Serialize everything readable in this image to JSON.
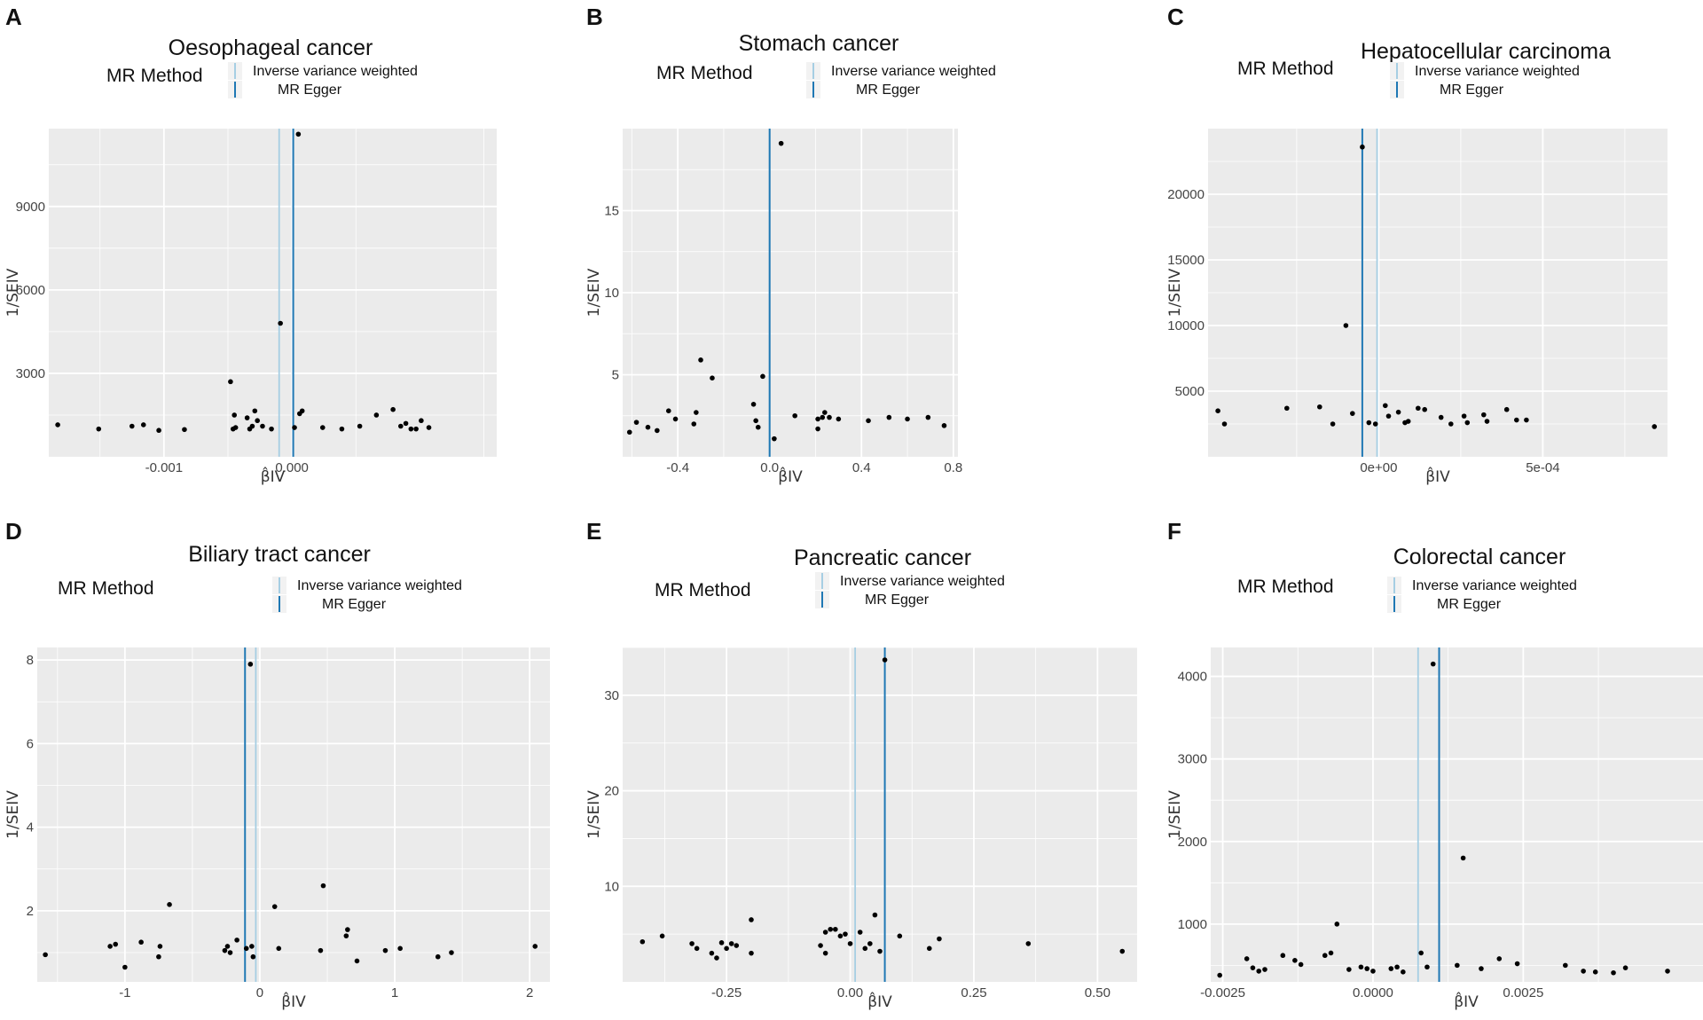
{
  "figure": {
    "colors": {
      "panel_bg": "#ebebeb",
      "grid": "#ffffff",
      "ivw": "#a6cee3",
      "egger": "#1f78b4",
      "point": "#000000"
    },
    "legend": {
      "title": "MR Method",
      "labels": [
        "Inverse variance weighted",
        "MR Egger"
      ]
    },
    "xlabel": "β̂IV",
    "ylabel": "1/SEIV"
  },
  "chart_data": [
    {
      "letter": "A",
      "type": "scatter",
      "title": "Oesophageal cancer",
      "xlim": [
        -0.0019,
        0.0016
      ],
      "ylim": [
        0,
        11800
      ],
      "xticks": [
        -0.001,
        0.0
      ],
      "xtick_labels": [
        "-0.001",
        "0.000"
      ],
      "yticks": [
        3000,
        6000,
        9000
      ],
      "ytick_labels": [
        "3000",
        "6000",
        "9000"
      ],
      "ivw": -0.0001,
      "egger": 1e-05,
      "points": [
        [
          -0.00183,
          1150
        ],
        [
          -0.00151,
          1000
        ],
        [
          -0.00125,
          1100
        ],
        [
          -0.00116,
          1150
        ],
        [
          -0.00104,
          950
        ],
        [
          -0.00084,
          980
        ],
        [
          -0.00048,
          2700
        ],
        [
          -0.00046,
          1000
        ],
        [
          -0.00045,
          1500
        ],
        [
          -0.00044,
          1050
        ],
        [
          -0.00035,
          1400
        ],
        [
          -0.00033,
          1000
        ],
        [
          -0.00031,
          1100
        ],
        [
          -0.00029,
          1650
        ],
        [
          -0.00027,
          1300
        ],
        [
          -0.00023,
          1100
        ],
        [
          -0.00016,
          1000
        ],
        [
          -9e-05,
          4800
        ],
        [
          2e-05,
          1050
        ],
        [
          5e-05,
          11600
        ],
        [
          6e-05,
          1550
        ],
        [
          8e-05,
          1650
        ],
        [
          0.00024,
          1050
        ],
        [
          0.00039,
          1000
        ],
        [
          0.00053,
          1100
        ],
        [
          0.00066,
          1500
        ],
        [
          0.00079,
          1700
        ],
        [
          0.00085,
          1100
        ],
        [
          0.00089,
          1200
        ],
        [
          0.00093,
          1000
        ],
        [
          0.00097,
          1000
        ],
        [
          0.00101,
          1300
        ],
        [
          0.00107,
          1050
        ]
      ]
    },
    {
      "letter": "B",
      "type": "scatter",
      "title": "Stomach cancer",
      "xlim": [
        -0.64,
        0.82
      ],
      "ylim": [
        0,
        20
      ],
      "xticks": [
        -0.4,
        0.0,
        0.4,
        0.8
      ],
      "xtick_labels": [
        "-0.4",
        "0.0",
        "0.4",
        "0.8"
      ],
      "yticks": [
        5,
        10,
        15
      ],
      "ytick_labels": [
        "5",
        "10",
        "15"
      ],
      "ivw": 0.0,
      "egger": 0.0,
      "points": [
        [
          -0.61,
          1.5
        ],
        [
          -0.58,
          2.1
        ],
        [
          -0.53,
          1.8
        ],
        [
          -0.49,
          1.6
        ],
        [
          -0.44,
          2.8
        ],
        [
          -0.41,
          2.3
        ],
        [
          -0.33,
          2.0
        ],
        [
          -0.32,
          2.7
        ],
        [
          -0.3,
          5.9
        ],
        [
          -0.25,
          4.8
        ],
        [
          -0.07,
          3.2
        ],
        [
          -0.06,
          2.2
        ],
        [
          -0.05,
          1.8
        ],
        [
          -0.03,
          4.9
        ],
        [
          0.02,
          1.1
        ],
        [
          0.05,
          19.1
        ],
        [
          0.11,
          2.5
        ],
        [
          0.21,
          1.7
        ],
        [
          0.21,
          2.3
        ],
        [
          0.23,
          2.4
        ],
        [
          0.24,
          2.7
        ],
        [
          0.26,
          2.4
        ],
        [
          0.3,
          2.3
        ],
        [
          0.43,
          2.2
        ],
        [
          0.52,
          2.4
        ],
        [
          0.6,
          2.3
        ],
        [
          0.69,
          2.4
        ],
        [
          0.76,
          1.9
        ]
      ]
    },
    {
      "letter": "C",
      "type": "scatter",
      "title": "Hepatocellular carcinoma",
      "xlim": [
        -0.00052,
        0.00088
      ],
      "ylim": [
        0,
        25000
      ],
      "xticks": [
        0.0,
        0.0005
      ],
      "xtick_labels": [
        "0e+00",
        "5e-04"
      ],
      "yticks": [
        5000,
        10000,
        15000,
        20000
      ],
      "ytick_labels": [
        "5000",
        "10000",
        "15000",
        "20000"
      ],
      "ivw": -5e-06,
      "egger": -5e-05,
      "points": [
        [
          -0.00049,
          3500
        ],
        [
          -0.00047,
          2500
        ],
        [
          -0.00028,
          3700
        ],
        [
          -0.00018,
          3800
        ],
        [
          -0.00014,
          2500
        ],
        [
          -8e-05,
          3300
        ],
        [
          -3e-05,
          2600
        ],
        [
          -1e-05,
          2500
        ],
        [
          3e-05,
          3100
        ],
        [
          6e-05,
          3400
        ],
        [
          9e-05,
          2700
        ],
        [
          0.00014,
          3600
        ],
        [
          0.00019,
          3000
        ],
        [
          0.00022,
          2500
        ],
        [
          0.00027,
          2600
        ],
        [
          0.00033,
          2700
        ],
        [
          0.00039,
          3600
        ],
        [
          0.00042,
          2800
        ],
        [
          0.00045,
          2800
        ],
        [
          -0.0001,
          10000
        ],
        [
          -5e-05,
          23600
        ],
        [
          2e-05,
          3900
        ],
        [
          8e-05,
          2600
        ],
        [
          0.00012,
          3700
        ],
        [
          0.00026,
          3100
        ],
        [
          0.00032,
          3200
        ],
        [
          0.00084,
          2300
        ]
      ]
    },
    {
      "letter": "D",
      "type": "scatter",
      "title": "Biliary tract cancer",
      "xlim": [
        -1.65,
        2.15
      ],
      "ylim": [
        0.3,
        8.3
      ],
      "xticks": [
        -1,
        0,
        1,
        2
      ],
      "xtick_labels": [
        "-1",
        "0",
        "1",
        "2"
      ],
      "yticks": [
        2,
        4,
        6,
        8
      ],
      "ytick_labels": [
        "2",
        "4",
        "6",
        "8"
      ],
      "ivw": -0.03,
      "egger": -0.11,
      "points": [
        [
          -1.59,
          0.95
        ],
        [
          -1.11,
          1.15
        ],
        [
          -1.07,
          1.2
        ],
        [
          -1.0,
          0.65
        ],
        [
          -0.88,
          1.25
        ],
        [
          -0.74,
          1.15
        ],
        [
          -0.75,
          0.9
        ],
        [
          -0.67,
          2.15
        ],
        [
          -0.26,
          1.05
        ],
        [
          -0.24,
          1.15
        ],
        [
          -0.22,
          1.0
        ],
        [
          -0.17,
          1.3
        ],
        [
          -0.1,
          1.1
        ],
        [
          -0.06,
          1.15
        ],
        [
          -0.05,
          0.9
        ],
        [
          -0.07,
          7.9
        ],
        [
          0.11,
          2.1
        ],
        [
          0.14,
          1.1
        ],
        [
          0.45,
          1.05
        ],
        [
          0.47,
          2.6
        ],
        [
          0.64,
          1.4
        ],
        [
          0.65,
          1.55
        ],
        [
          0.72,
          0.8
        ],
        [
          0.93,
          1.05
        ],
        [
          1.04,
          1.1
        ],
        [
          1.32,
          0.9
        ],
        [
          1.42,
          1.0
        ],
        [
          2.04,
          1.15
        ]
      ]
    },
    {
      "letter": "E",
      "type": "scatter",
      "title": "Pancreatic cancer",
      "xlim": [
        -0.46,
        0.58
      ],
      "ylim": [
        0,
        35
      ],
      "xticks": [
        -0.25,
        0.0,
        0.25,
        0.5
      ],
      "xtick_labels": [
        "-0.25",
        "0.00",
        "0.25",
        "0.50"
      ],
      "yticks": [
        10,
        20,
        30
      ],
      "ytick_labels": [
        "10",
        "20",
        "30"
      ],
      "ivw": 0.01,
      "egger": 0.07,
      "points": [
        [
          -0.42,
          4.2
        ],
        [
          -0.38,
          4.8
        ],
        [
          -0.32,
          4.0
        ],
        [
          -0.31,
          3.5
        ],
        [
          -0.28,
          3.0
        ],
        [
          -0.27,
          2.5
        ],
        [
          -0.26,
          4.1
        ],
        [
          -0.25,
          3.5
        ],
        [
          -0.24,
          4.0
        ],
        [
          -0.23,
          3.8
        ],
        [
          -0.2,
          6.5
        ],
        [
          -0.2,
          3.0
        ],
        [
          -0.06,
          3.8
        ],
        [
          -0.05,
          5.2
        ],
        [
          -0.05,
          3.0
        ],
        [
          -0.04,
          5.5
        ],
        [
          -0.03,
          5.5
        ],
        [
          -0.02,
          4.8
        ],
        [
          -0.01,
          5.0
        ],
        [
          0.0,
          4.0
        ],
        [
          0.02,
          5.2
        ],
        [
          0.03,
          3.5
        ],
        [
          0.04,
          4.0
        ],
        [
          0.05,
          7.0
        ],
        [
          0.06,
          3.2
        ],
        [
          0.07,
          33.7
        ],
        [
          0.1,
          4.8
        ],
        [
          0.16,
          3.5
        ],
        [
          0.18,
          4.5
        ],
        [
          0.36,
          4.0
        ],
        [
          0.55,
          3.2
        ]
      ]
    },
    {
      "letter": "F",
      "type": "scatter",
      "title": "Colorectal cancer",
      "xlim": [
        -0.0027,
        0.0058
      ],
      "ylim": [
        300,
        4350
      ],
      "xticks": [
        -0.0025,
        0.0,
        0.0025
      ],
      "xtick_labels": [
        "-0.0025",
        "0.0000",
        "0.0025"
      ],
      "yticks": [
        1000,
        2000,
        3000,
        4000
      ],
      "ytick_labels": [
        "1000",
        "2000",
        "3000",
        "4000"
      ],
      "ivw": 0.00075,
      "egger": 0.0011,
      "points": [
        [
          -0.00255,
          380
        ],
        [
          -0.0021,
          580
        ],
        [
          -0.002,
          470
        ],
        [
          -0.0019,
          430
        ],
        [
          -0.0018,
          450
        ],
        [
          -0.0015,
          620
        ],
        [
          -0.0013,
          560
        ],
        [
          -0.0012,
          510
        ],
        [
          -0.0008,
          620
        ],
        [
          -0.0007,
          650
        ],
        [
          -0.0006,
          1000
        ],
        [
          -0.0004,
          450
        ],
        [
          -0.0002,
          480
        ],
        [
          -0.0001,
          460
        ],
        [
          0.0,
          430
        ],
        [
          0.0003,
          460
        ],
        [
          0.0004,
          480
        ],
        [
          0.0005,
          420
        ],
        [
          0.0008,
          650
        ],
        [
          0.0009,
          480
        ],
        [
          0.001,
          4150
        ],
        [
          0.0014,
          500
        ],
        [
          0.0018,
          460
        ],
        [
          0.0015,
          1800
        ],
        [
          0.0021,
          580
        ],
        [
          0.0024,
          520
        ],
        [
          0.0032,
          500
        ],
        [
          0.0035,
          430
        ],
        [
          0.0037,
          420
        ],
        [
          0.004,
          410
        ],
        [
          0.0042,
          470
        ],
        [
          0.0049,
          430
        ],
        [
          0.0056,
          430
        ]
      ]
    }
  ]
}
